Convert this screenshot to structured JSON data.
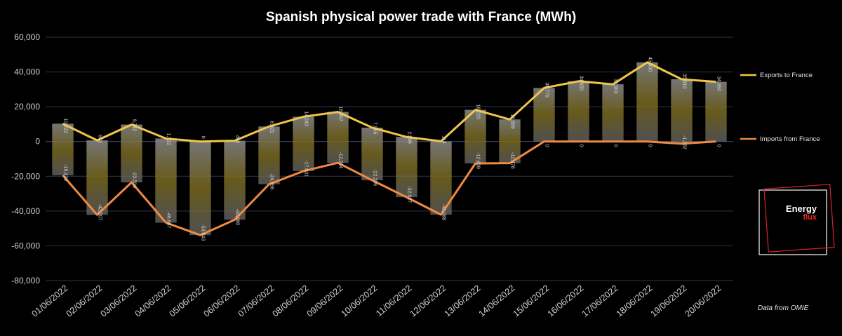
{
  "chart_data": {
    "type": "line",
    "title": "Spanish physical power trade with France (MWh)",
    "ylim": [
      -80000,
      60000
    ],
    "yticks": [
      60000,
      40000,
      20000,
      0,
      -20000,
      -40000,
      -60000,
      -80000
    ],
    "ytick_labels": [
      "60,000",
      "40,000",
      "20,000",
      "0",
      "-20,000",
      "-40,000",
      "-60,000",
      "-80,000"
    ],
    "categories": [
      "01/06/2022",
      "02/06/2022",
      "03/06/2022",
      "04/06/2022",
      "05/06/2022",
      "06/06/2022",
      "07/06/2022",
      "08/06/2022",
      "09/06/2022",
      "10/06/2022",
      "11/06/2022",
      "12/06/2022",
      "13/06/2022",
      "14/06/2022",
      "15/06/2022",
      "16/06/2022",
      "17/06/2022",
      "18/06/2022",
      "19/06/2022",
      "20/06/2022"
    ],
    "grid": true,
    "legend_position": "right",
    "series": [
      {
        "name": "Exports to France",
        "color": "#f0c64a",
        "values": [
          10222,
          643,
          9742,
          1712,
          0,
          446,
          8621,
          14243,
          16997,
          7955,
          2599,
          114,
          18220,
          12689,
          30775,
          34650,
          32903,
          45500,
          35810,
          34350
        ],
        "labels": [
          "10,222",
          "643",
          "9,742",
          "1,712",
          "0",
          "446",
          "8,621",
          "14,243",
          "16,997",
          "7,955",
          "2,599",
          "114",
          "18,220",
          "12,689",
          "30,775",
          "34,650",
          "32,903",
          "45,500",
          "35,810",
          "34,350"
        ]
      },
      {
        "name": "Imports from France",
        "color": "#f08a40",
        "values": [
          -19429,
          -42207,
          -23508,
          -46687,
          -53843,
          -44980,
          -24556,
          -17031,
          -12264,
          -22296,
          -32027,
          -42088,
          -12608,
          -12478,
          0,
          0,
          0,
          0,
          -1282,
          0
        ],
        "labels": [
          "-19,429",
          "-42,207",
          "-23,508",
          "-46,687",
          "-53,843",
          "-44,980",
          "-24,556",
          "-17,031",
          "-12,264",
          "-22,296",
          "-32,027",
          "-42,088",
          "-12,608",
          "-12,478",
          "0",
          "0",
          "0",
          "0",
          "-1,282",
          "0"
        ]
      }
    ]
  },
  "source_note": "Data from OMIE",
  "logo": {
    "line1": "Energy",
    "line2": "flux"
  }
}
